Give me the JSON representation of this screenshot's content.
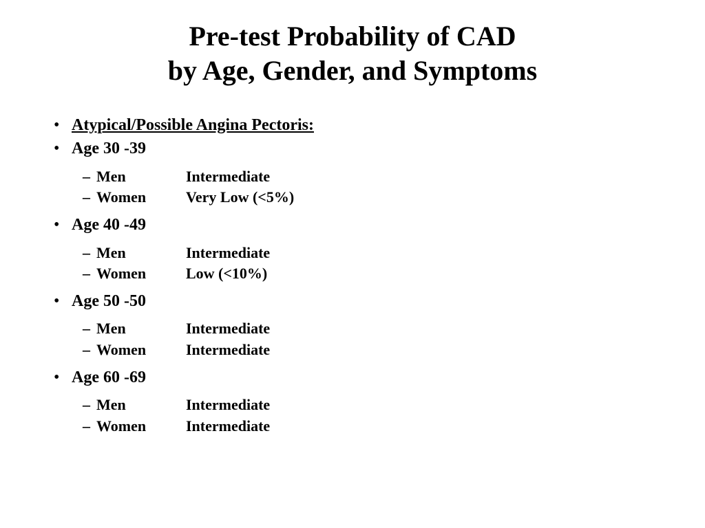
{
  "title_line1": "Pre-test Probability of CAD",
  "title_line2": "by Age, Gender, and Symptoms",
  "heading": "Atypical/Possible Angina Pectoris:",
  "groups": [
    {
      "age": "Age 30 -39",
      "rows": [
        {
          "label": "Men",
          "value": "Intermediate"
        },
        {
          "label": "Women",
          "value": "Very Low (<5%)"
        }
      ]
    },
    {
      "age": "Age 40 -49",
      "rows": [
        {
          "label": "Men",
          "value": "Intermediate"
        },
        {
          "label": "Women",
          "value": "Low (<10%)"
        }
      ]
    },
    {
      "age": "Age 50 -50",
      "rows": [
        {
          "label": "Men",
          "value": "Intermediate"
        },
        {
          "label": "Women",
          "value": "Intermediate"
        }
      ]
    },
    {
      "age": "Age 60 -69",
      "rows": [
        {
          "label": "Men",
          "value": "Intermediate"
        },
        {
          "label": "Women",
          "value": "Intermediate"
        }
      ]
    }
  ],
  "colors": {
    "text": "#000000",
    "background": "#ffffff"
  },
  "fonts": {
    "family": "Times New Roman",
    "title_size_pt": 30,
    "l1_size_pt": 18,
    "l2_size_pt": 16
  }
}
